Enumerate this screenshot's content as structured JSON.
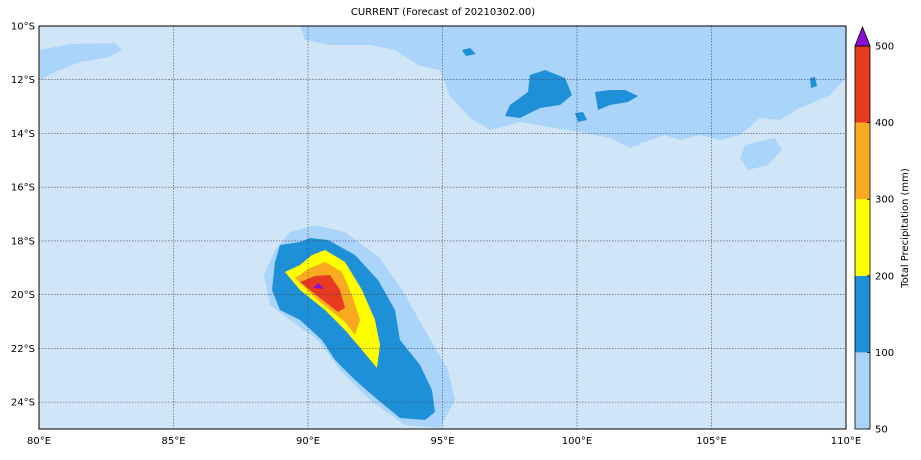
{
  "title": "CURRENT (Forecast of 20210302.00)",
  "map": {
    "xlim": [
      80,
      110
    ],
    "ylim": [
      -25,
      -10
    ],
    "xticks": [
      {
        "value": 80,
        "label": "80°E"
      },
      {
        "value": 85,
        "label": "85°E"
      },
      {
        "value": 90,
        "label": "90°E"
      },
      {
        "value": 95,
        "label": "95°E"
      },
      {
        "value": 100,
        "label": "100°E"
      },
      {
        "value": 105,
        "label": "105°E"
      },
      {
        "value": 110,
        "label": "110°E"
      }
    ],
    "yticks": [
      {
        "value": -10,
        "label": "10°S"
      },
      {
        "value": -12,
        "label": "12°S"
      },
      {
        "value": -14,
        "label": "14°S"
      },
      {
        "value": -16,
        "label": "16°S"
      },
      {
        "value": -18,
        "label": "18°S"
      },
      {
        "value": -20,
        "label": "20°S"
      },
      {
        "value": -22,
        "label": "22°S"
      },
      {
        "value": -24,
        "label": "24°S"
      }
    ],
    "background": "#d0e6f6"
  },
  "colorbar": {
    "label": "Total Precipitation (mm)",
    "levels": [
      50,
      100,
      200,
      300,
      400,
      500
    ],
    "colors": [
      "#aad4fa",
      "#1e90d8",
      "#ffff00",
      "#f8aa20",
      "#e83a20"
    ],
    "extend_color": "#8a10d8"
  }
}
